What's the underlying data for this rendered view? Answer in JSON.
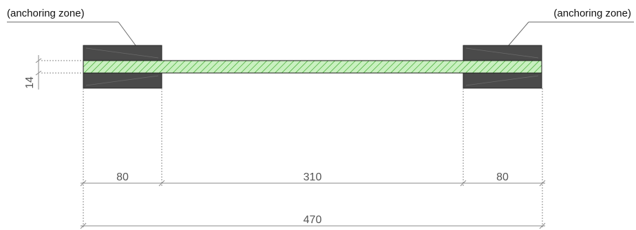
{
  "labels": {
    "left_zone": "(anchoring zone)",
    "right_zone": "(anchoring zone)"
  },
  "dimensions": {
    "thickness": "14",
    "left_length": "80",
    "middle_length": "310",
    "right_length": "80",
    "total_length": "470"
  },
  "colors": {
    "anchor_block": "#4a4a4a",
    "specimen_fill": "#c9f0c0",
    "specimen_hatch": "#3aa82a",
    "dimension_line": "#8a8a8a",
    "leader_line": "#666666"
  }
}
